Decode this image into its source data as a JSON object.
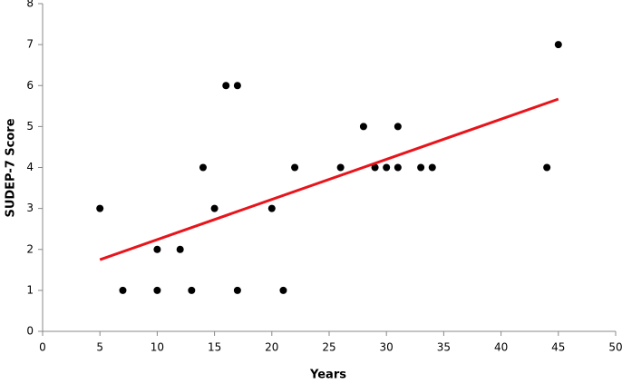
{
  "chart_data": {
    "type": "scatter",
    "xlabel": "Years",
    "ylabel": "SUDEP-7 Score",
    "x": [
      5,
      7,
      10,
      10,
      12,
      13,
      14,
      15,
      16,
      17,
      17,
      20,
      21,
      22,
      26,
      28,
      29,
      30,
      31,
      31,
      33,
      34,
      44,
      45
    ],
    "values": [
      3,
      1,
      2,
      1,
      2,
      1,
      4,
      3,
      6,
      6,
      1,
      3,
      1,
      4,
      4,
      5,
      4,
      4,
      4,
      5,
      4,
      4,
      4,
      7
    ],
    "color": "#000000",
    "trend": {
      "color": "#e8141b",
      "x": [
        5,
        45
      ],
      "values": [
        1.75,
        5.67
      ]
    },
    "xlim": [
      0,
      50
    ],
    "xticks": [
      0,
      5,
      10,
      15,
      20,
      25,
      30,
      35,
      40,
      45,
      50
    ],
    "ylim": [
      0,
      8
    ],
    "yticks": [
      0,
      1,
      2,
      3,
      4,
      5,
      6,
      7,
      8
    ],
    "grid": false
  }
}
